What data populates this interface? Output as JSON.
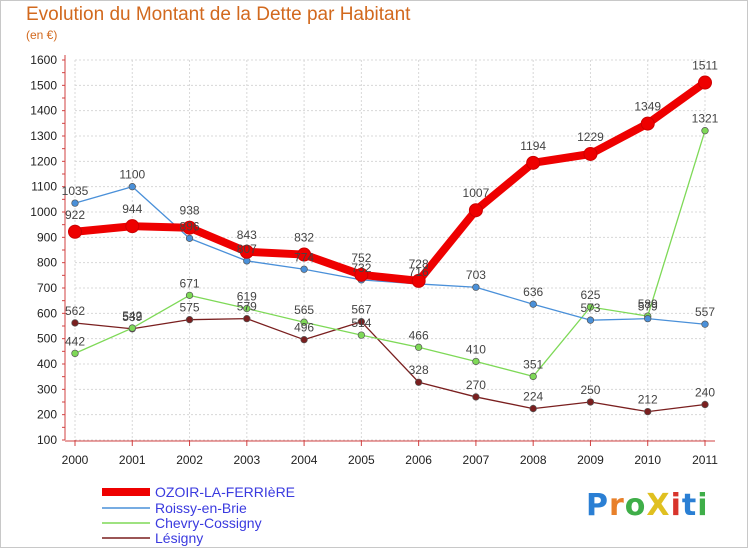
{
  "title": "Evolution du Montant de la Dette par Habitant",
  "subtitle": "(en €)",
  "logo": "ProXiti",
  "chart_data": {
    "type": "line",
    "title": "Evolution du Montant de la Dette par Habitant",
    "ylabel": "(en €)",
    "x": [
      2000,
      2001,
      2002,
      2003,
      2004,
      2005,
      2006,
      2007,
      2008,
      2009,
      2010,
      2011
    ],
    "ylim": [
      100,
      1600
    ],
    "yticks": [
      100,
      200,
      300,
      400,
      500,
      600,
      700,
      800,
      900,
      1000,
      1100,
      1200,
      1300,
      1400,
      1500,
      1600
    ],
    "grid": true,
    "legend_position": "bottom-left",
    "series": [
      {
        "name": "OZOIR-LA-FERRIèRE",
        "color": "#ee0000",
        "values": [
          922,
          944,
          938,
          843,
          832,
          752,
          728,
          1007,
          1194,
          1229,
          1349,
          1511
        ]
      },
      {
        "name": "Roissy-en-Brie",
        "color": "#4a90d9",
        "values": [
          1035,
          1100,
          896,
          807,
          774,
          732,
          716,
          703,
          636,
          573,
          579,
          557
        ]
      },
      {
        "name": "Chevry-Cossigny",
        "color": "#7ed957",
        "values": [
          442,
          542,
          671,
          619,
          565,
          514,
          466,
          410,
          351,
          625,
          589,
          1321
        ]
      },
      {
        "name": "Lésigny",
        "color": "#7a1f1f",
        "values": [
          562,
          539,
          575,
          579,
          496,
          567,
          328,
          270,
          224,
          250,
          212,
          240
        ]
      }
    ]
  }
}
